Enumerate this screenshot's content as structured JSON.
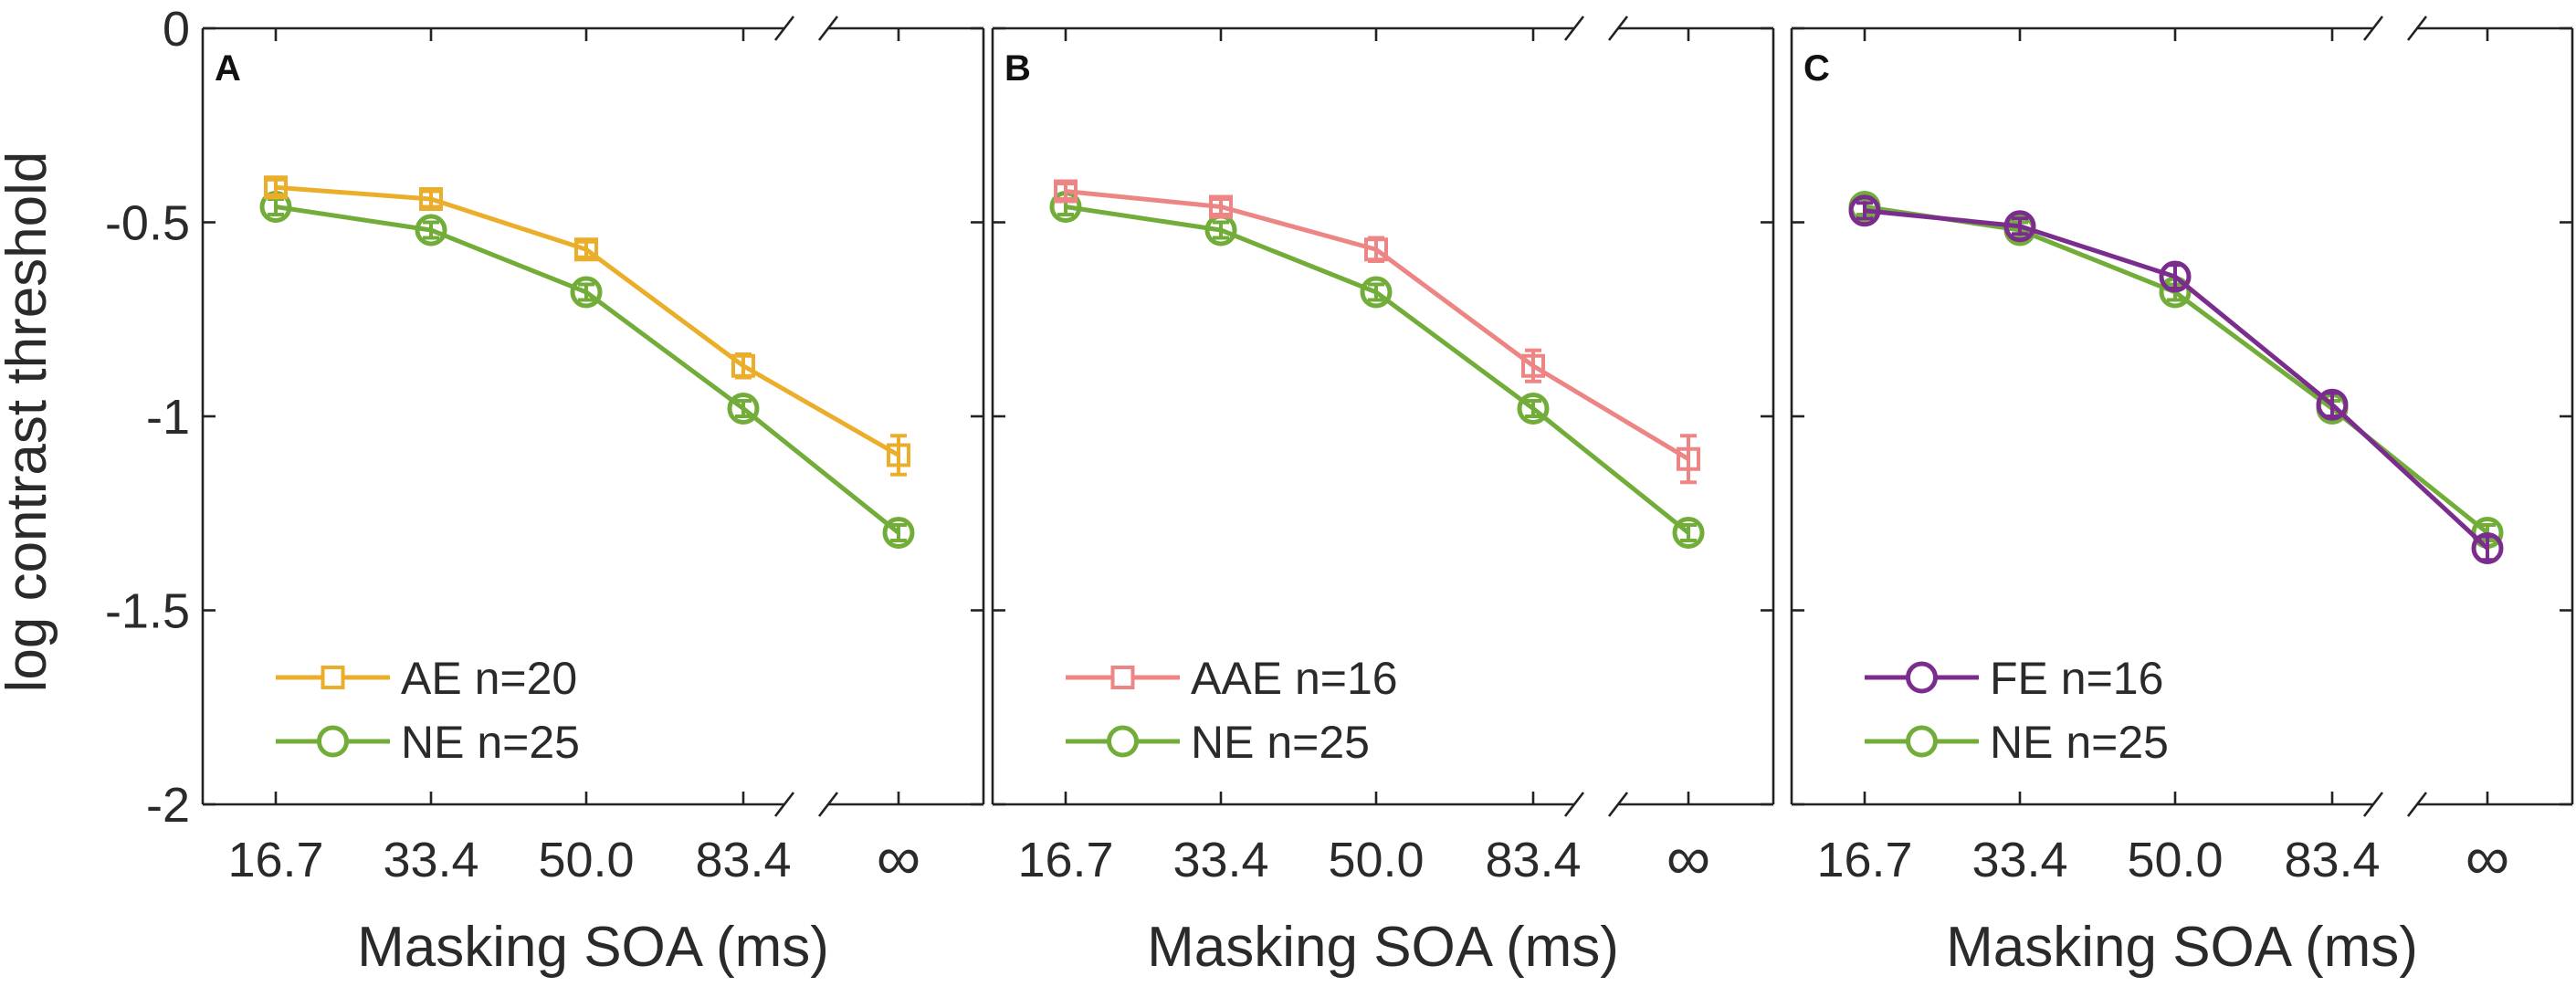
{
  "chart_data": [
    {
      "type": "line",
      "panel_label": "A",
      "ylabel": "log contrast threshold",
      "xlabel": "Masking SOA (ms)",
      "categories": [
        "16.7",
        "33.4",
        "50.0",
        "83.4",
        "∞"
      ],
      "yticks": [
        "0",
        "-0.5",
        "-1",
        "-1.5",
        "-2"
      ],
      "ylim": [
        -2,
        0
      ],
      "axis_break": "between 83.4 and ∞",
      "legend_position": "bottom-left",
      "series": [
        {
          "name": "AE n=20",
          "marker": "square",
          "color": "#EBAE2A",
          "values": [
            -0.41,
            -0.44,
            -0.57,
            -0.87,
            -1.1
          ],
          "errors": [
            0.02,
            0.02,
            0.02,
            0.03,
            0.05
          ]
        },
        {
          "name": "NE n=25",
          "marker": "circle",
          "color": "#72AD3A",
          "values": [
            -0.46,
            -0.52,
            -0.68,
            -0.98,
            -1.3
          ],
          "errors": [
            0.02,
            0.02,
            0.02,
            0.02,
            0.02
          ]
        }
      ]
    },
    {
      "type": "line",
      "panel_label": "B",
      "xlabel": "Masking SOA (ms)",
      "categories": [
        "16.7",
        "33.4",
        "50.0",
        "83.4",
        "∞"
      ],
      "ylim": [
        -2,
        0
      ],
      "axis_break": "between 83.4 and ∞",
      "legend_position": "bottom-left",
      "series": [
        {
          "name": "AAE n=16",
          "marker": "square",
          "color": "#EE8585",
          "values": [
            -0.42,
            -0.46,
            -0.57,
            -0.87,
            -1.11
          ],
          "errors": [
            0.02,
            0.02,
            0.03,
            0.04,
            0.06
          ]
        },
        {
          "name": "NE n=25",
          "marker": "circle",
          "color": "#72AD3A",
          "values": [
            -0.46,
            -0.52,
            -0.68,
            -0.98,
            -1.3
          ],
          "errors": [
            0.02,
            0.02,
            0.02,
            0.02,
            0.02
          ]
        }
      ]
    },
    {
      "type": "line",
      "panel_label": "C",
      "xlabel": "Masking SOA (ms)",
      "categories": [
        "16.7",
        "33.4",
        "50.0",
        "83.4",
        "∞"
      ],
      "ylim": [
        -2,
        0
      ],
      "axis_break": "between 83.4 and ∞",
      "legend_position": "bottom-left",
      "series": [
        {
          "name": "FE n=16",
          "marker": "circle",
          "color": "#7B2D8E",
          "values": [
            -0.47,
            -0.51,
            -0.64,
            -0.97,
            -1.34
          ],
          "errors": [
            0.02,
            0.02,
            0.03,
            0.03,
            0.03
          ]
        },
        {
          "name": "NE n=25",
          "marker": "circle",
          "color": "#72AD3A",
          "values": [
            -0.46,
            -0.52,
            -0.68,
            -0.98,
            -1.3
          ],
          "errors": [
            0.02,
            0.02,
            0.02,
            0.02,
            0.02
          ]
        }
      ]
    }
  ]
}
